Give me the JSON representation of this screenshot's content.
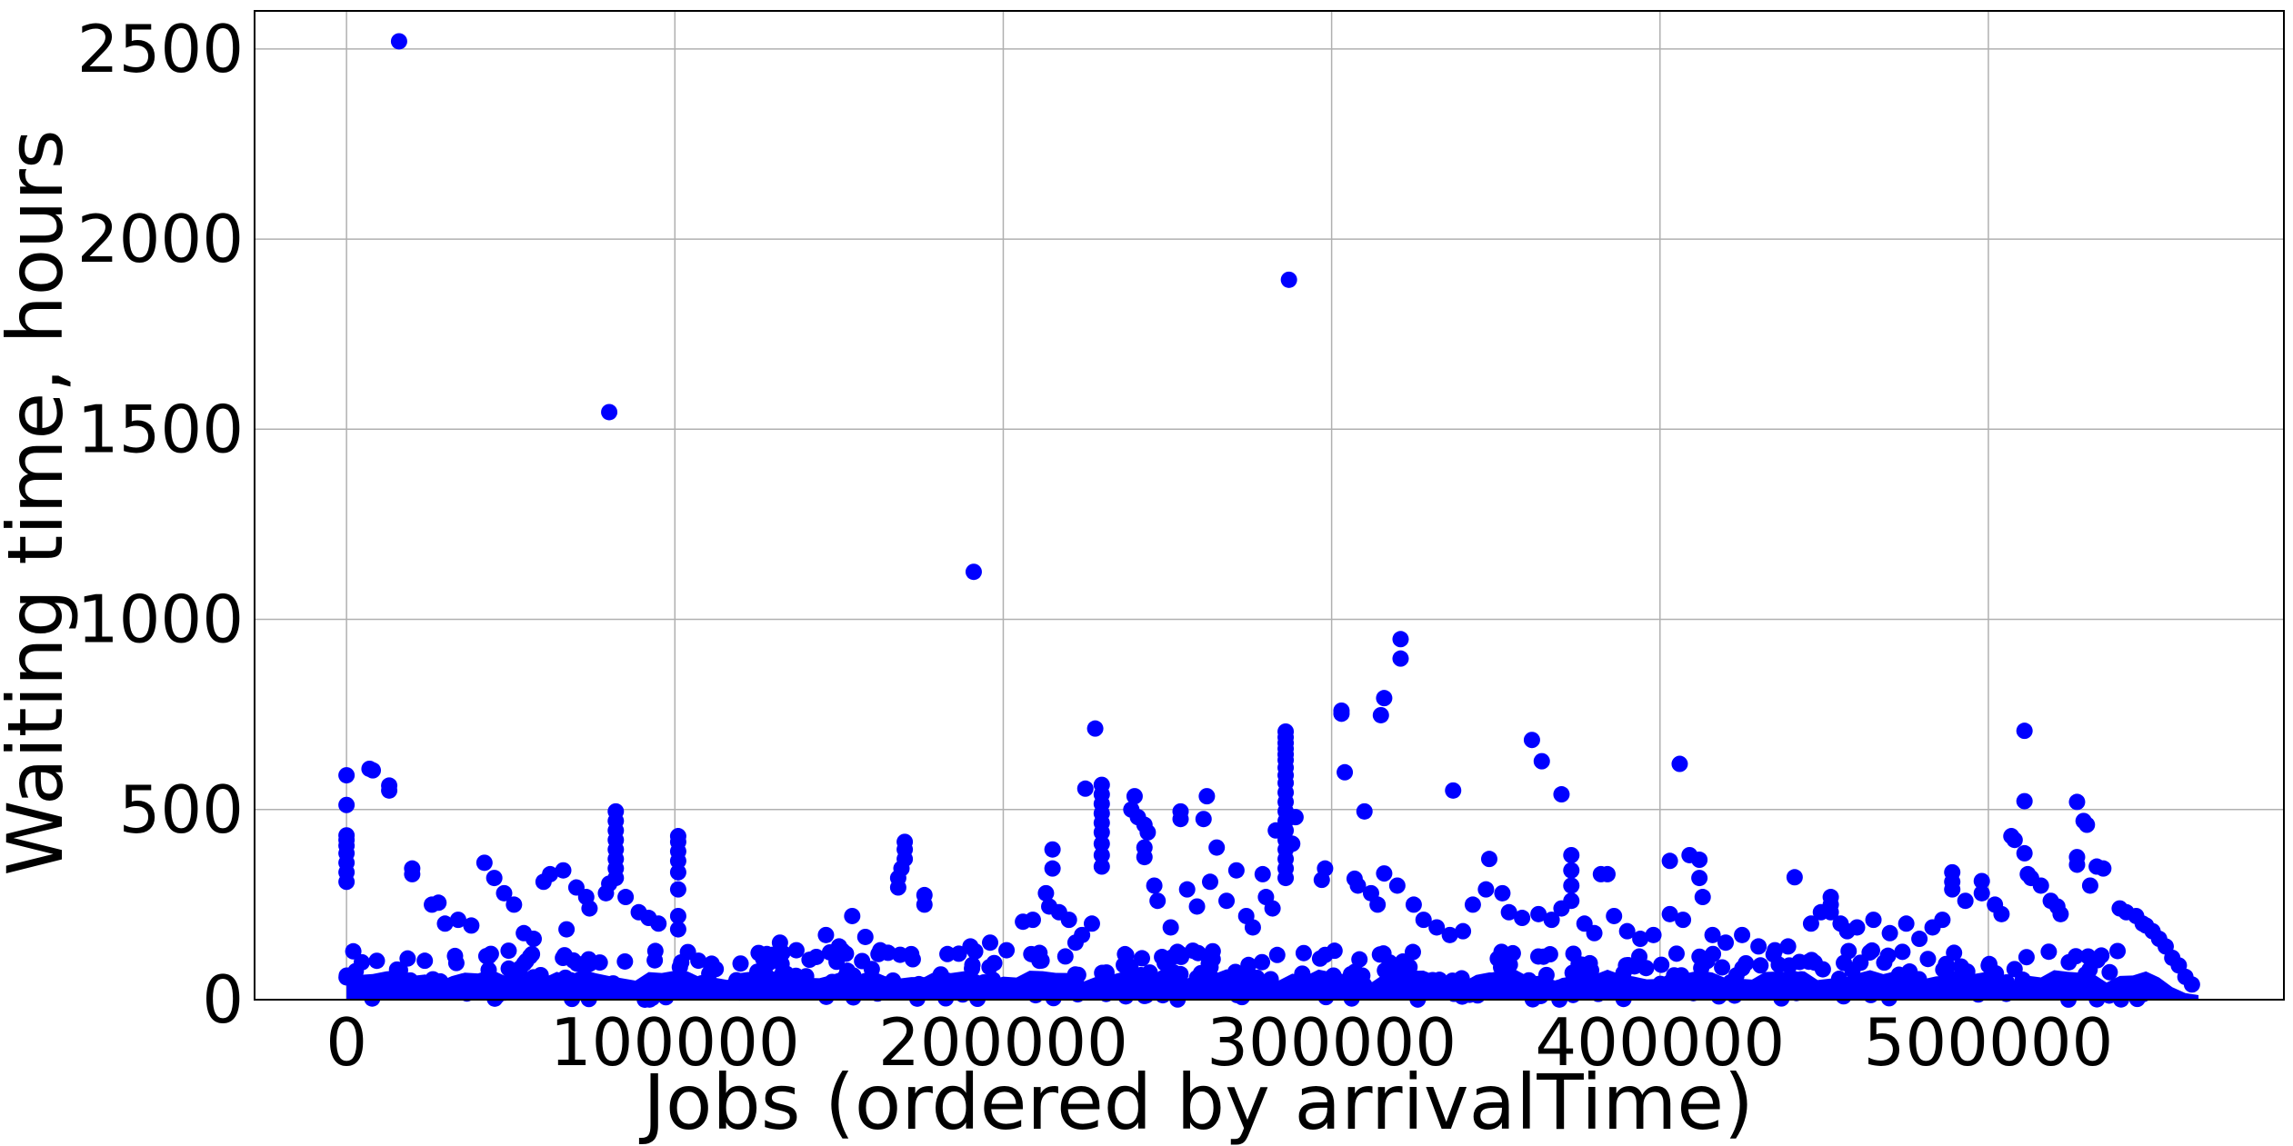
{
  "chart_data": {
    "type": "scatter",
    "title": "",
    "xlabel": "Jobs (ordered by arrivalTime)",
    "ylabel": "Waiting time, hours",
    "xlim": [
      -28000,
      590000
    ],
    "ylim": [
      0,
      2600
    ],
    "xticks": [
      0,
      100000,
      200000,
      300000,
      400000,
      500000
    ],
    "xtick_labels": [
      "0",
      "100000",
      "200000",
      "300000",
      "400000",
      "500000"
    ],
    "yticks": [
      0,
      500,
      1000,
      1500,
      2000,
      2500
    ],
    "ytick_labels": [
      "0",
      "500",
      "1000",
      "1500",
      "2000",
      "2500"
    ],
    "grid": true,
    "legend": "none",
    "marker_color": "#0000ff",
    "dense_band_max": 40,
    "points": [
      [
        16000,
        2520
      ],
      [
        80000,
        1545
      ],
      [
        191000,
        1125
      ],
      [
        287000,
        1893
      ],
      [
        321000,
        948
      ],
      [
        321000,
        897
      ],
      [
        316000,
        793
      ],
      [
        315000,
        748
      ],
      [
        303000,
        760
      ],
      [
        303000,
        752
      ],
      [
        228000,
        713
      ],
      [
        286000,
        705
      ],
      [
        286000,
        690
      ],
      [
        286000,
        675
      ],
      [
        286000,
        660
      ],
      [
        286000,
        645
      ],
      [
        286000,
        630
      ],
      [
        286000,
        610
      ],
      [
        286000,
        590
      ],
      [
        286000,
        570
      ],
      [
        286000,
        545
      ],
      [
        286000,
        520
      ],
      [
        286000,
        495
      ],
      [
        286000,
        470
      ],
      [
        286000,
        445
      ],
      [
        286000,
        420
      ],
      [
        286000,
        395
      ],
      [
        286000,
        370
      ],
      [
        286000,
        345
      ],
      [
        286000,
        320
      ],
      [
        511000,
        707
      ],
      [
        511000,
        522
      ],
      [
        511000,
        385
      ],
      [
        361000,
        683
      ],
      [
        364000,
        627
      ],
      [
        406000,
        620
      ],
      [
        0,
        590
      ],
      [
        0,
        512
      ],
      [
        0,
        432
      ],
      [
        0,
        420
      ],
      [
        0,
        405
      ],
      [
        0,
        385
      ],
      [
        0,
        360
      ],
      [
        0,
        335
      ],
      [
        0,
        310
      ],
      [
        7000,
        607
      ],
      [
        8000,
        603
      ],
      [
        13000,
        563
      ],
      [
        13000,
        550
      ],
      [
        304000,
        598
      ],
      [
        310000,
        495
      ],
      [
        337000,
        550
      ],
      [
        370000,
        540
      ],
      [
        230000,
        565
      ],
      [
        230000,
        540
      ],
      [
        230000,
        515
      ],
      [
        230000,
        490
      ],
      [
        230000,
        465
      ],
      [
        230000,
        440
      ],
      [
        230000,
        410
      ],
      [
        230000,
        380
      ],
      [
        230000,
        350
      ],
      [
        225000,
        555
      ],
      [
        262000,
        535
      ],
      [
        254000,
        495
      ],
      [
        254000,
        475
      ],
      [
        261000,
        475
      ],
      [
        239000,
        500
      ],
      [
        241000,
        480
      ],
      [
        243000,
        460
      ],
      [
        244000,
        440
      ],
      [
        243000,
        400
      ],
      [
        243000,
        375
      ],
      [
        240000,
        535
      ],
      [
        527000,
        520
      ],
      [
        529000,
        470
      ],
      [
        530000,
        460
      ],
      [
        527000,
        375
      ],
      [
        527000,
        355
      ],
      [
        533000,
        350
      ],
      [
        535000,
        345
      ],
      [
        531000,
        300
      ],
      [
        82000,
        495
      ],
      [
        82000,
        470
      ],
      [
        82000,
        445
      ],
      [
        82000,
        420
      ],
      [
        82000,
        395
      ],
      [
        82000,
        370
      ],
      [
        82000,
        345
      ],
      [
        82000,
        320
      ],
      [
        80000,
        305
      ],
      [
        101000,
        430
      ],
      [
        101000,
        415
      ],
      [
        101000,
        390
      ],
      [
        101000,
        365
      ],
      [
        101000,
        335
      ],
      [
        101000,
        290
      ],
      [
        101000,
        220
      ],
      [
        101000,
        185
      ],
      [
        170000,
        415
      ],
      [
        170000,
        395
      ],
      [
        170000,
        370
      ],
      [
        169000,
        345
      ],
      [
        168000,
        320
      ],
      [
        168000,
        295
      ],
      [
        176000,
        275
      ],
      [
        176000,
        250
      ],
      [
        283000,
        445
      ],
      [
        289000,
        480
      ],
      [
        288000,
        410
      ],
      [
        298000,
        345
      ],
      [
        297000,
        315
      ],
      [
        307000,
        318
      ],
      [
        308000,
        300
      ],
      [
        312000,
        280
      ],
      [
        314000,
        250
      ],
      [
        316000,
        332
      ],
      [
        320000,
        300
      ],
      [
        325000,
        250
      ],
      [
        403000,
        365
      ],
      [
        409000,
        380
      ],
      [
        412000,
        368
      ],
      [
        412000,
        320
      ],
      [
        413000,
        270
      ],
      [
        403000,
        225
      ],
      [
        373000,
        380
      ],
      [
        373000,
        340
      ],
      [
        373000,
        300
      ],
      [
        373000,
        260
      ],
      [
        382000,
        330
      ],
      [
        384000,
        330
      ],
      [
        348000,
        370
      ],
      [
        352000,
        280
      ],
      [
        347000,
        290
      ],
      [
        343000,
        250
      ],
      [
        441000,
        322
      ],
      [
        452000,
        270
      ],
      [
        452000,
        250
      ],
      [
        452000,
        230
      ],
      [
        455000,
        200
      ],
      [
        457000,
        180
      ],
      [
        489000,
        335
      ],
      [
        489000,
        310
      ],
      [
        489000,
        290
      ],
      [
        498000,
        312
      ],
      [
        498000,
        280
      ],
      [
        493000,
        260
      ],
      [
        507000,
        430
      ],
      [
        508000,
        420
      ],
      [
        512000,
        330
      ],
      [
        513000,
        320
      ],
      [
        516000,
        300
      ],
      [
        519000,
        260
      ],
      [
        521000,
        245
      ],
      [
        522000,
        225
      ],
      [
        540000,
        240
      ],
      [
        542000,
        230
      ],
      [
        545000,
        220
      ],
      [
        547000,
        200
      ],
      [
        548000,
        195
      ],
      [
        550000,
        180
      ],
      [
        42000,
        360
      ],
      [
        45000,
        320
      ],
      [
        48000,
        280
      ],
      [
        51000,
        250
      ],
      [
        60000,
        310
      ],
      [
        62000,
        330
      ],
      [
        66000,
        340
      ],
      [
        70000,
        295
      ],
      [
        73000,
        270
      ],
      [
        74000,
        240
      ],
      [
        79000,
        280
      ],
      [
        85000,
        270
      ],
      [
        92000,
        215
      ],
      [
        95000,
        200
      ],
      [
        89000,
        230
      ],
      [
        20000,
        345
      ],
      [
        20000,
        330
      ],
      [
        26000,
        250
      ],
      [
        28000,
        255
      ],
      [
        30000,
        200
      ],
      [
        34000,
        210
      ],
      [
        38000,
        195
      ],
      [
        54000,
        175
      ],
      [
        57000,
        160
      ],
      [
        67000,
        185
      ],
      [
        111000,
        90
      ],
      [
        120000,
        95
      ],
      [
        128000,
        120
      ],
      [
        132000,
        150
      ],
      [
        137000,
        130
      ],
      [
        141000,
        105
      ],
      [
        146000,
        170
      ],
      [
        150000,
        140
      ],
      [
        154000,
        220
      ],
      [
        158000,
        165
      ],
      [
        162000,
        120
      ],
      [
        183000,
        120
      ],
      [
        190000,
        140
      ],
      [
        196000,
        150
      ],
      [
        201000,
        130
      ],
      [
        206000,
        205
      ],
      [
        209000,
        210
      ],
      [
        213000,
        280
      ],
      [
        214000,
        245
      ],
      [
        215000,
        395
      ],
      [
        215000,
        345
      ],
      [
        217000,
        230
      ],
      [
        220000,
        210
      ],
      [
        222000,
        150
      ],
      [
        224000,
        170
      ],
      [
        227000,
        200
      ],
      [
        246000,
        300
      ],
      [
        247000,
        260
      ],
      [
        251000,
        190
      ],
      [
        256000,
        290
      ],
      [
        259000,
        245
      ],
      [
        263000,
        310
      ],
      [
        265000,
        400
      ],
      [
        268000,
        260
      ],
      [
        271000,
        340
      ],
      [
        274000,
        220
      ],
      [
        276000,
        190
      ],
      [
        279000,
        330
      ],
      [
        280000,
        270
      ],
      [
        282000,
        240
      ],
      [
        328000,
        210
      ],
      [
        332000,
        190
      ],
      [
        336000,
        170
      ],
      [
        340000,
        180
      ],
      [
        354000,
        230
      ],
      [
        358000,
        215
      ],
      [
        363000,
        225
      ],
      [
        367000,
        210
      ],
      [
        370000,
        240
      ],
      [
        377000,
        200
      ],
      [
        380000,
        175
      ],
      [
        386000,
        220
      ],
      [
        390000,
        180
      ],
      [
        394000,
        160
      ],
      [
        398000,
        170
      ],
      [
        407000,
        210
      ],
      [
        416000,
        170
      ],
      [
        420000,
        150
      ],
      [
        425000,
        170
      ],
      [
        430000,
        140
      ],
      [
        435000,
        130
      ],
      [
        439000,
        140
      ],
      [
        446000,
        200
      ],
      [
        449000,
        230
      ],
      [
        460000,
        190
      ],
      [
        465000,
        210
      ],
      [
        470000,
        175
      ],
      [
        475000,
        200
      ],
      [
        479000,
        160
      ],
      [
        483000,
        190
      ],
      [
        486000,
        210
      ],
      [
        502000,
        250
      ],
      [
        504000,
        225
      ],
      [
        552000,
        160
      ],
      [
        554000,
        140
      ],
      [
        556000,
        110
      ],
      [
        558000,
        90
      ],
      [
        560000,
        60
      ],
      [
        562000,
        40
      ]
    ]
  }
}
